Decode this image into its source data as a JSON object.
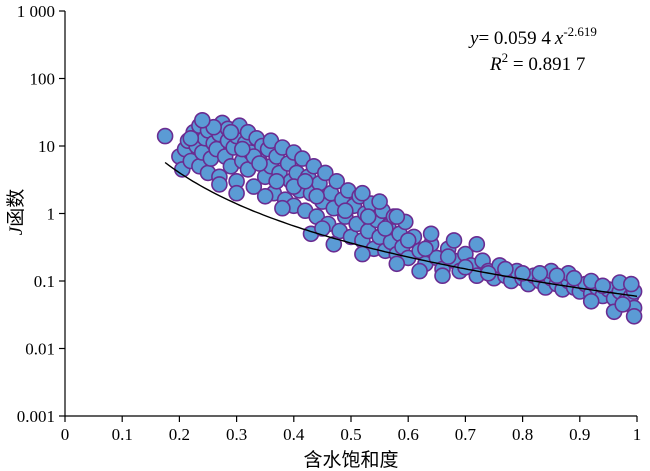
{
  "chart_data": {
    "type": "scatter",
    "xlabel": "含水饱和度",
    "ylabel": {
      "italic": "J",
      "rest": "函数"
    },
    "xlim": [
      0,
      1
    ],
    "ylim": [
      0.001,
      1000
    ],
    "y_scale": "log",
    "grid": false,
    "x_ticks": [
      "0",
      "0.1",
      "0.2",
      "0.3",
      "0.4",
      "0.5",
      "0.6",
      "0.7",
      "0.8",
      "0.9",
      "1"
    ],
    "y_ticks": [
      "0.001",
      "0.01",
      "0.1",
      "1",
      "10",
      "100",
      "1 000"
    ],
    "marker_fill": "#5b9bd5",
    "marker_edge": "#6a2c91",
    "fit_color": "#000000",
    "fit": {
      "a": 0.0594,
      "b": -2.619,
      "x_from": 0.175,
      "x_to": 1.0
    },
    "annotation": {
      "equation_var": "y",
      "equation_rhs": "= 0.059 4",
      "equation_x": "x",
      "equation_exp": "-2.619",
      "r2_label": "R",
      "r2_sup": "2",
      "r2_value": " = 0.891 7"
    },
    "series": [
      {
        "points": [
          [
            0.175,
            14
          ],
          [
            0.2,
            7
          ],
          [
            0.205,
            4.5
          ],
          [
            0.21,
            9
          ],
          [
            0.215,
            12
          ],
          [
            0.22,
            6
          ],
          [
            0.225,
            16
          ],
          [
            0.23,
            10
          ],
          [
            0.235,
            5
          ],
          [
            0.235,
            20
          ],
          [
            0.24,
            8
          ],
          [
            0.245,
            13
          ],
          [
            0.25,
            4
          ],
          [
            0.25,
            17
          ],
          [
            0.255,
            6.5
          ],
          [
            0.26,
            11
          ],
          [
            0.265,
            9
          ],
          [
            0.27,
            15
          ],
          [
            0.27,
            3.5
          ],
          [
            0.275,
            22
          ],
          [
            0.28,
            7
          ],
          [
            0.285,
            12
          ],
          [
            0.285,
            18
          ],
          [
            0.29,
            5
          ],
          [
            0.295,
            9.5
          ],
          [
            0.3,
            14
          ],
          [
            0.3,
            3
          ],
          [
            0.305,
            20
          ],
          [
            0.31,
            6
          ],
          [
            0.315,
            11
          ],
          [
            0.32,
            4.5
          ],
          [
            0.32,
            16
          ],
          [
            0.325,
            8
          ],
          [
            0.33,
            2.5
          ],
          [
            0.335,
            13
          ],
          [
            0.34,
            6
          ],
          [
            0.345,
            10
          ],
          [
            0.35,
            3.5
          ],
          [
            0.355,
            9
          ],
          [
            0.36,
            5
          ],
          [
            0.36,
            12
          ],
          [
            0.365,
            2
          ],
          [
            0.37,
            7
          ],
          [
            0.375,
            4
          ],
          [
            0.38,
            9.5
          ],
          [
            0.385,
            1.6
          ],
          [
            0.39,
            5.5
          ],
          [
            0.395,
            3
          ],
          [
            0.4,
            8
          ],
          [
            0.4,
            1.3
          ],
          [
            0.405,
            4
          ],
          [
            0.41,
            2.2
          ],
          [
            0.415,
            6.5
          ],
          [
            0.42,
            1.1
          ],
          [
            0.425,
            3.5
          ],
          [
            0.43,
            2
          ],
          [
            0.435,
            5
          ],
          [
            0.44,
            0.9
          ],
          [
            0.445,
            2.8
          ],
          [
            0.45,
            1.5
          ],
          [
            0.455,
            4
          ],
          [
            0.46,
            0.7
          ],
          [
            0.465,
            2
          ],
          [
            0.47,
            1.2
          ],
          [
            0.475,
            3
          ],
          [
            0.48,
            0.55
          ],
          [
            0.485,
            1.6
          ],
          [
            0.49,
            0.9
          ],
          [
            0.495,
            2.2
          ],
          [
            0.5,
            0.45
          ],
          [
            0.505,
            1.3
          ],
          [
            0.51,
            0.7
          ],
          [
            0.515,
            1.8
          ],
          [
            0.52,
            0.4
          ],
          [
            0.525,
            1
          ],
          [
            0.53,
            0.55
          ],
          [
            0.535,
            1.4
          ],
          [
            0.54,
            0.3
          ],
          [
            0.545,
            0.8
          ],
          [
            0.55,
            0.45
          ],
          [
            0.555,
            1.1
          ],
          [
            0.56,
            0.28
          ],
          [
            0.565,
            0.65
          ],
          [
            0.57,
            0.38
          ],
          [
            0.575,
            0.9
          ],
          [
            0.58,
            0.25
          ],
          [
            0.585,
            0.5
          ],
          [
            0.59,
            0.32
          ],
          [
            0.595,
            0.75
          ],
          [
            0.6,
            0.22
          ],
          [
            0.61,
            0.45
          ],
          [
            0.62,
            0.28
          ],
          [
            0.63,
            0.18
          ],
          [
            0.64,
            0.35
          ],
          [
            0.65,
            0.22
          ],
          [
            0.66,
            0.15
          ],
          [
            0.67,
            0.3
          ],
          [
            0.68,
            0.2
          ],
          [
            0.69,
            0.14
          ],
          [
            0.7,
            0.25
          ],
          [
            0.71,
            0.17
          ],
          [
            0.72,
            0.12
          ],
          [
            0.73,
            0.2
          ],
          [
            0.74,
            0.14
          ],
          [
            0.75,
            0.11
          ],
          [
            0.76,
            0.17
          ],
          [
            0.77,
            0.12
          ],
          [
            0.78,
            0.1
          ],
          [
            0.79,
            0.14
          ],
          [
            0.8,
            0.11
          ],
          [
            0.81,
            0.09
          ],
          [
            0.82,
            0.12
          ],
          [
            0.83,
            0.1
          ],
          [
            0.84,
            0.08
          ],
          [
            0.85,
            0.11
          ],
          [
            0.86,
            0.09
          ],
          [
            0.87,
            0.075
          ],
          [
            0.88,
            0.1
          ],
          [
            0.89,
            0.08
          ],
          [
            0.9,
            0.07
          ],
          [
            0.91,
            0.09
          ],
          [
            0.92,
            0.065
          ],
          [
            0.93,
            0.08
          ],
          [
            0.94,
            0.06
          ],
          [
            0.95,
            0.075
          ],
          [
            0.96,
            0.055
          ],
          [
            0.97,
            0.07
          ],
          [
            0.98,
            0.05
          ],
          [
            0.99,
            0.06
          ],
          [
            0.995,
            0.04
          ],
          [
            0.995,
            0.03
          ],
          [
            0.995,
            0.07
          ],
          [
            0.96,
            0.035
          ],
          [
            0.975,
            0.045
          ],
          [
            0.92,
            0.05
          ],
          [
            0.88,
            0.13
          ],
          [
            0.85,
            0.14
          ],
          [
            0.72,
            0.35
          ],
          [
            0.68,
            0.4
          ],
          [
            0.64,
            0.5
          ],
          [
            0.58,
            0.9
          ],
          [
            0.55,
            1.5
          ],
          [
            0.52,
            2
          ],
          [
            0.47,
            0.35
          ],
          [
            0.43,
            0.5
          ],
          [
            0.58,
            0.18
          ],
          [
            0.62,
            0.14
          ],
          [
            0.66,
            0.12
          ],
          [
            0.52,
            0.25
          ],
          [
            0.4,
            2.5
          ],
          [
            0.35,
            1.8
          ],
          [
            0.3,
            2
          ],
          [
            0.27,
            2.7
          ],
          [
            0.38,
            1.2
          ],
          [
            0.45,
            0.6
          ],
          [
            0.33,
            7
          ],
          [
            0.31,
            9
          ],
          [
            0.29,
            16
          ],
          [
            0.26,
            19
          ],
          [
            0.24,
            24
          ],
          [
            0.22,
            13
          ],
          [
            0.34,
            5.5
          ],
          [
            0.37,
            3
          ],
          [
            0.42,
            3
          ],
          [
            0.44,
            1.8
          ],
          [
            0.49,
            1.1
          ],
          [
            0.53,
            0.9
          ],
          [
            0.56,
            0.6
          ],
          [
            0.6,
            0.4
          ],
          [
            0.63,
            0.3
          ],
          [
            0.67,
            0.23
          ],
          [
            0.7,
            0.16
          ],
          [
            0.74,
            0.13
          ],
          [
            0.77,
            0.15
          ],
          [
            0.8,
            0.13
          ],
          [
            0.83,
            0.13
          ],
          [
            0.86,
            0.12
          ],
          [
            0.89,
            0.11
          ],
          [
            0.92,
            0.1
          ],
          [
            0.94,
            0.085
          ],
          [
            0.97,
            0.095
          ],
          [
            0.99,
            0.09
          ]
        ]
      }
    ]
  }
}
